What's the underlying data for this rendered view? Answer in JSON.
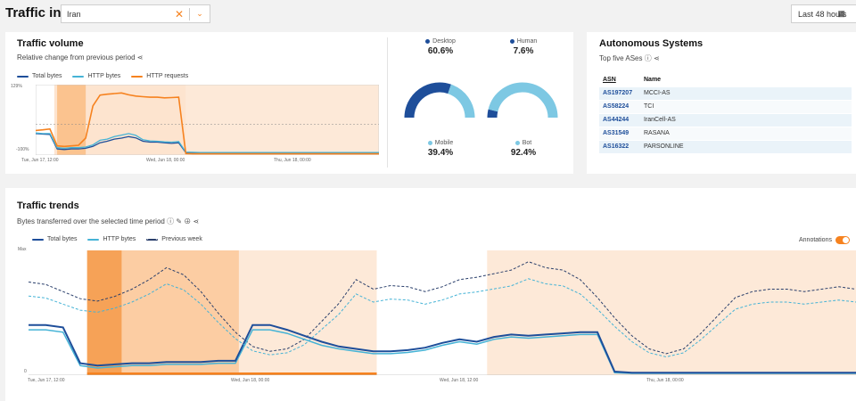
{
  "header": {
    "title": "Traffic in",
    "country": "Iran",
    "range": "Last 48 hours"
  },
  "traffic_volume": {
    "title": "Traffic volume",
    "subtitle": "Relative change from previous period",
    "legend": [
      "Total bytes",
      "HTTP bytes",
      "HTTP requests"
    ],
    "y_ticks": [
      "129%",
      "-100%"
    ],
    "x_ticks": [
      "Tue, Jun 17, 12:00",
      "Wed, Jun 18, 00:00",
      "Thu, Jun 18, 00:00"
    ]
  },
  "shares": [
    {
      "label": "Desktop",
      "value": "60.6%",
      "color": "#1e4e9a"
    },
    {
      "label": "Human",
      "value": "7.6%",
      "color": "#1e4e9a"
    },
    {
      "label": "Mobile",
      "value": "39.4%",
      "color": "#7dc8e3"
    },
    {
      "label": "Bot",
      "value": "92.4%",
      "color": "#7dc8e3"
    }
  ],
  "autonomous_systems": {
    "title": "Autonomous Systems",
    "subtitle": "Top five ASes",
    "columns": [
      "ASN",
      "Name"
    ],
    "rows": [
      {
        "asn": "AS197207",
        "name": "MCCI-AS"
      },
      {
        "asn": "AS58224",
        "name": "TCI"
      },
      {
        "asn": "AS44244",
        "name": "IranCell-AS"
      },
      {
        "asn": "AS31549",
        "name": "RASANA"
      },
      {
        "asn": "AS16322",
        "name": "PARSONLINE"
      }
    ]
  },
  "traffic_trends": {
    "title": "Traffic trends",
    "subtitle": "Bytes transferred over the selected time period",
    "legend": [
      "Total bytes",
      "HTTP bytes",
      "Previous week"
    ],
    "annotations_label": "Annotations",
    "y_ticks": [
      "Max",
      "0"
    ],
    "x_ticks": [
      "Tue, Jun 17, 12:00",
      "Wed, Jun 18, 00:00",
      "Wed, Jun 18, 12:00",
      "Thu, Jun 18, 00:00"
    ]
  },
  "colors": {
    "accent": "#f6821f",
    "total_bytes": "#1e4e9a",
    "http_bytes": "#45b3d6",
    "previous_week": "#2a3f6b"
  },
  "chart_data": [
    {
      "type": "line",
      "title": "Traffic volume",
      "subtitle": "Relative change from previous period",
      "y_unit": "%",
      "ylim": [
        -100,
        129
      ],
      "x_range_hours": [
        0,
        48
      ],
      "x_tick_labels": [
        "Tue, Jun 17, 12:00",
        "Wed, Jun 18, 00:00",
        "Thu, Jun 18, 00:00"
      ],
      "x_tick_hours": [
        0,
        12,
        36
      ],
      "legend_position": "top-left",
      "series": [
        {
          "name": "Total bytes",
          "x": [
            0,
            1,
            2,
            3,
            4,
            5,
            6,
            7,
            8,
            9,
            10,
            11,
            12,
            13,
            14,
            15,
            16,
            17,
            18,
            19,
            20,
            21,
            22,
            23,
            24,
            25,
            26,
            27,
            28,
            29,
            30,
            31,
            32,
            33,
            34,
            35,
            36,
            37,
            38,
            39,
            40,
            41,
            42,
            43,
            44,
            45,
            46,
            47,
            48
          ],
          "y": [
            -30,
            -32,
            -33,
            -80,
            -82,
            -80,
            -80,
            -78,
            -72,
            -60,
            -55,
            -48,
            -45,
            -40,
            -44,
            -55,
            -58,
            -58,
            -60,
            -62,
            -60,
            -92,
            -93,
            -94,
            -94,
            -94,
            -94,
            -94,
            -94,
            -94,
            -94,
            -94,
            -94,
            -94,
            -94,
            -94,
            -94,
            -94,
            -94,
            -94,
            -94,
            -94,
            -94,
            -94,
            -94,
            -94,
            -94,
            -94,
            -94
          ]
        },
        {
          "name": "HTTP bytes",
          "x": [
            0,
            1,
            2,
            3,
            4,
            5,
            6,
            7,
            8,
            9,
            10,
            11,
            12,
            13,
            14,
            15,
            16,
            17,
            18,
            19,
            20,
            21,
            22,
            23,
            24,
            25,
            26,
            27,
            28,
            29,
            30,
            31,
            32,
            33,
            34,
            35,
            36,
            37,
            38,
            39,
            40,
            41,
            42,
            43,
            44,
            45,
            46,
            47,
            48
          ],
          "y": [
            -28,
            -30,
            -30,
            -76,
            -78,
            -76,
            -76,
            -74,
            -67,
            -52,
            -48,
            -40,
            -35,
            -30,
            -36,
            -50,
            -54,
            -55,
            -57,
            -58,
            -56,
            -90,
            -91,
            -92,
            -92,
            -92,
            -92,
            -92,
            -92,
            -92,
            -92,
            -92,
            -92,
            -92,
            -92,
            -92,
            -92,
            -92,
            -92,
            -92,
            -92,
            -92,
            -92,
            -92,
            -92,
            -92,
            -92,
            -92,
            -92
          ]
        },
        {
          "name": "HTTP requests",
          "x": [
            0,
            1,
            2,
            3,
            4,
            5,
            6,
            7,
            8,
            9,
            10,
            11,
            12,
            13,
            14,
            15,
            16,
            17,
            18,
            19,
            20,
            21,
            22,
            23,
            24,
            25,
            26,
            27,
            28,
            29,
            30,
            31,
            32,
            33,
            34,
            35,
            36,
            37,
            38,
            39,
            40,
            41,
            42,
            43,
            44,
            45,
            46,
            47,
            48
          ],
          "y": [
            -20,
            -18,
            -15,
            -70,
            -72,
            -70,
            -68,
            -45,
            60,
            95,
            98,
            100,
            102,
            96,
            92,
            90,
            88,
            88,
            86,
            87,
            88,
            -95,
            -96,
            -96,
            -96,
            -96,
            -96,
            -96,
            -96,
            -96,
            -96,
            -96,
            -96,
            -96,
            -96,
            -96,
            -96,
            -96,
            -96,
            -96,
            -96,
            -96,
            -96,
            -96,
            -96,
            -96,
            -96,
            -96,
            -96
          ]
        }
      ]
    },
    {
      "type": "pie",
      "title": "",
      "categories": [
        "Desktop",
        "Mobile"
      ],
      "values": [
        60.6,
        39.4
      ]
    },
    {
      "type": "pie",
      "title": "",
      "categories": [
        "Human",
        "Bot"
      ],
      "values": [
        7.6,
        92.4
      ]
    },
    {
      "type": "line",
      "title": "Traffic trends",
      "subtitle": "Bytes transferred over the selected time period",
      "y_unit": "relative to max",
      "ylim": [
        0,
        1
      ],
      "y_tick_labels": [
        "Max",
        "0"
      ],
      "x_range_hours": [
        0,
        48
      ],
      "x_tick_labels": [
        "Tue, Jun 17, 12:00",
        "Wed, Jun 18, 00:00",
        "Wed, Jun 18, 12:00",
        "Thu, Jun 18, 00:00"
      ],
      "x_tick_hours": [
        0,
        12,
        24,
        36
      ],
      "legend_position": "top-left",
      "series": [
        {
          "name": "Total bytes",
          "x": [
            0,
            1,
            2,
            3,
            4,
            5,
            6,
            7,
            8,
            9,
            10,
            11,
            12,
            13,
            14,
            15,
            16,
            17,
            18,
            19,
            20,
            21,
            22,
            23,
            24,
            25,
            26,
            27,
            28,
            29,
            30,
            31,
            32,
            33,
            34,
            35,
            36,
            37,
            38,
            39,
            40,
            41,
            42,
            43,
            44,
            45,
            46,
            47,
            48
          ],
          "y": [
            0.42,
            0.42,
            0.4,
            0.1,
            0.08,
            0.09,
            0.1,
            0.1,
            0.11,
            0.11,
            0.11,
            0.12,
            0.12,
            0.42,
            0.42,
            0.38,
            0.33,
            0.28,
            0.24,
            0.22,
            0.2,
            0.2,
            0.21,
            0.23,
            0.27,
            0.3,
            0.28,
            0.32,
            0.34,
            0.33,
            0.34,
            0.35,
            0.36,
            0.36,
            0.03,
            0.02,
            0.02,
            0.02,
            0.02,
            0.02,
            0.02,
            0.02,
            0.02,
            0.02,
            0.02,
            0.02,
            0.02,
            0.02,
            0.02
          ]
        },
        {
          "name": "HTTP bytes",
          "x": [
            0,
            1,
            2,
            3,
            4,
            5,
            6,
            7,
            8,
            9,
            10,
            11,
            12,
            13,
            14,
            15,
            16,
            17,
            18,
            19,
            20,
            21,
            22,
            23,
            24,
            25,
            26,
            27,
            28,
            29,
            30,
            31,
            32,
            33,
            34,
            35,
            36,
            37,
            38,
            39,
            40,
            41,
            42,
            43,
            44,
            45,
            46,
            47,
            48
          ],
          "y": [
            0.38,
            0.38,
            0.36,
            0.08,
            0.06,
            0.07,
            0.08,
            0.08,
            0.09,
            0.09,
            0.09,
            0.1,
            0.1,
            0.38,
            0.38,
            0.35,
            0.3,
            0.25,
            0.22,
            0.2,
            0.18,
            0.18,
            0.19,
            0.21,
            0.25,
            0.28,
            0.26,
            0.3,
            0.32,
            0.31,
            0.32,
            0.33,
            0.34,
            0.34,
            0.02,
            0.015,
            0.015,
            0.015,
            0.015,
            0.015,
            0.015,
            0.015,
            0.015,
            0.015,
            0.015,
            0.015,
            0.015,
            0.015,
            0.015
          ]
        },
        {
          "name": "Previous week",
          "x": [
            0,
            1,
            2,
            3,
            4,
            5,
            6,
            7,
            8,
            9,
            10,
            11,
            12,
            13,
            14,
            15,
            16,
            17,
            18,
            19,
            20,
            21,
            22,
            23,
            24,
            25,
            26,
            27,
            28,
            29,
            30,
            31,
            32,
            33,
            34,
            35,
            36,
            37,
            38,
            39,
            40,
            41,
            42,
            43,
            44,
            45,
            46,
            47,
            48
          ],
          "y": [
            0.78,
            0.76,
            0.7,
            0.64,
            0.62,
            0.66,
            0.72,
            0.8,
            0.9,
            0.84,
            0.7,
            0.52,
            0.36,
            0.24,
            0.2,
            0.22,
            0.3,
            0.45,
            0.6,
            0.8,
            0.72,
            0.75,
            0.74,
            0.7,
            0.74,
            0.8,
            0.82,
            0.85,
            0.88,
            0.95,
            0.9,
            0.88,
            0.8,
            0.65,
            0.48,
            0.33,
            0.22,
            0.18,
            0.22,
            0.35,
            0.5,
            0.65,
            0.7,
            0.72,
            0.72,
            0.7,
            0.72,
            0.74,
            0.72
          ]
        }
      ]
    }
  ]
}
